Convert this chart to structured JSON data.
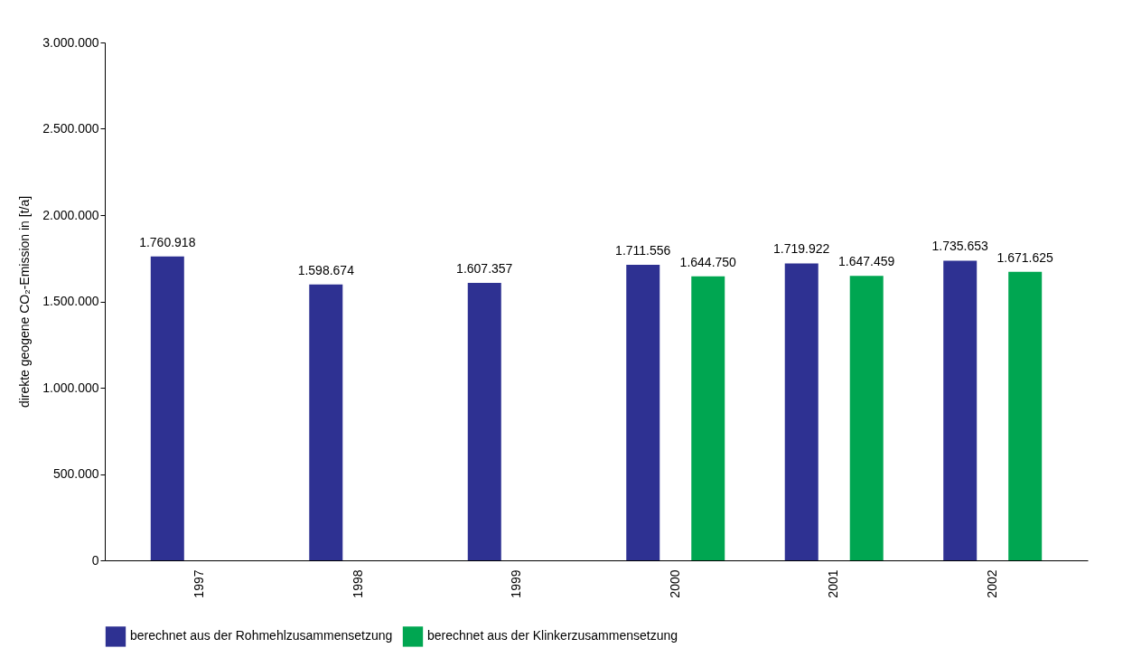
{
  "chart_data": {
    "type": "bar",
    "ylabel": "direkte geogene CO₂-Emission in [t/a]",
    "categories": [
      "1997",
      "1998",
      "1999",
      "2000",
      "2001",
      "2002"
    ],
    "series": [
      {
        "name": "berechnet aus der Rohmehlzusammensetzung",
        "color": "#2e3192",
        "values": [
          1760918,
          1598674,
          1607357,
          1711556,
          1719922,
          1735653
        ],
        "value_labels": [
          "1.760.918",
          "1.598.674",
          "1.607.357",
          "1.711.556",
          "1.719.922",
          "1.735.653"
        ]
      },
      {
        "name": "berechnet aus der Klinkerzusammensetzung",
        "color": "#00a651",
        "values": [
          null,
          null,
          null,
          1644750,
          1647459,
          1671625
        ],
        "value_labels": [
          null,
          null,
          null,
          "1.644.750",
          "1.647.459",
          "1.671.625"
        ]
      }
    ],
    "ylim": [
      0,
      3000000
    ],
    "yticks": [
      0,
      {
        "value": 500000,
        "label": "500.000"
      },
      {
        "value": 1000000,
        "label": "1.000.000"
      },
      {
        "value": 1500000,
        "label": "1.500.000"
      },
      {
        "value": 2000000,
        "label": "2.000.000"
      },
      {
        "value": 2500000,
        "label": "2.500.000"
      },
      {
        "value": 3000000,
        "label": "3.000.000"
      }
    ],
    "legend": "bottom"
  }
}
